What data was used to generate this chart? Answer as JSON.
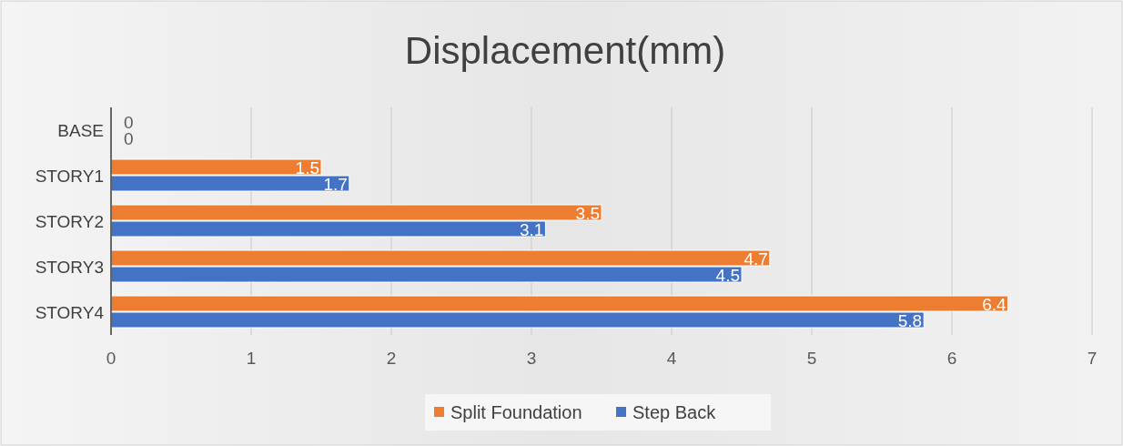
{
  "chart_data": {
    "type": "bar",
    "title": "Displacement(mm)",
    "orientation": "horizontal",
    "categories": [
      "BASE",
      "STORY1",
      "STORY2",
      "STORY3",
      "STORY4"
    ],
    "series": [
      {
        "name": "Split Foundation",
        "color": "#ed7d31",
        "values": [
          0,
          1.5,
          3.5,
          4.7,
          6.4
        ]
      },
      {
        "name": "Step Back",
        "color": "#4472c4",
        "values": [
          0,
          1.7,
          3.1,
          4.5,
          5.8
        ]
      }
    ],
    "xlim": [
      0,
      7
    ],
    "xticks": [
      0,
      1,
      2,
      3,
      4,
      5,
      6,
      7
    ],
    "grid": "x",
    "legend": "bottom",
    "data_labels": true
  }
}
